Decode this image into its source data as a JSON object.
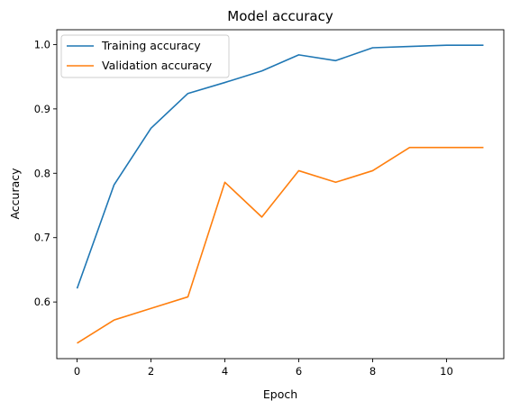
{
  "chart_data": {
    "type": "line",
    "title": "Model accuracy",
    "xlabel": "Epoch",
    "ylabel": "Accuracy",
    "x": [
      0,
      1,
      2,
      3,
      4,
      5,
      6,
      7,
      8,
      9,
      10,
      11
    ],
    "xlim": [
      -0.55,
      11.55
    ],
    "ylim": [
      0.512,
      1.023
    ],
    "xticks": [
      0,
      2,
      4,
      6,
      8,
      10
    ],
    "yticks": [
      0.6,
      0.7,
      0.8,
      0.9,
      1.0
    ],
    "xtick_labels": [
      "0",
      "2",
      "4",
      "6",
      "8",
      "10"
    ],
    "ytick_labels": [
      "0.6",
      "0.7",
      "0.8",
      "0.9",
      "1.0"
    ],
    "grid": false,
    "legend_position": "top-left",
    "series": [
      {
        "name": "Training accuracy",
        "color": "#1f77b4",
        "values": [
          0.621,
          0.782,
          0.87,
          0.924,
          0.941,
          0.959,
          0.984,
          0.975,
          0.995,
          0.997,
          0.999,
          0.999
        ]
      },
      {
        "name": "Validation accuracy",
        "color": "#ff7f0e",
        "values": [
          0.536,
          0.572,
          0.59,
          0.608,
          0.786,
          0.732,
          0.804,
          0.786,
          0.804,
          0.84,
          0.84,
          0.84
        ]
      }
    ]
  }
}
